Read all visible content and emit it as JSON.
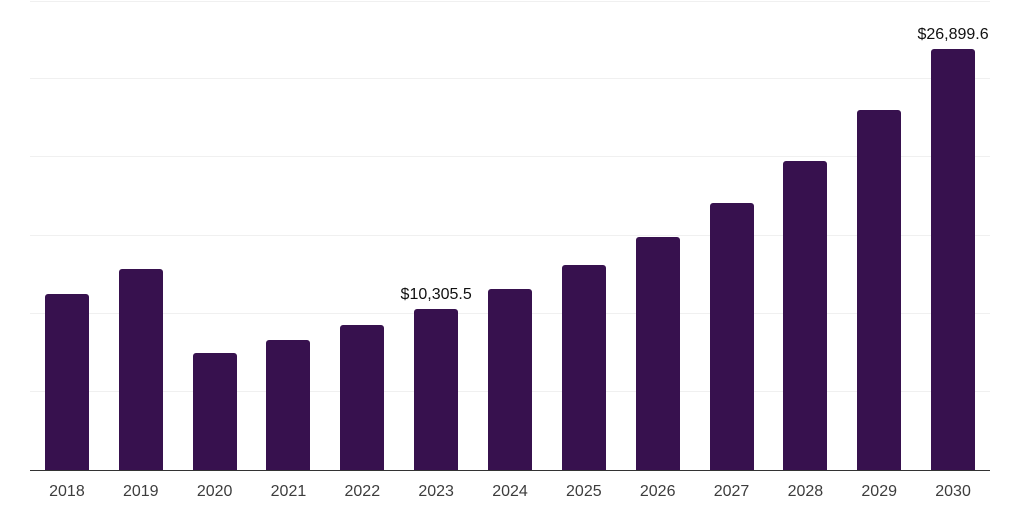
{
  "chart_data": {
    "type": "bar",
    "title": "",
    "xlabel": "",
    "ylabel": "",
    "categories": [
      "2018",
      "2019",
      "2020",
      "2021",
      "2022",
      "2023",
      "2024",
      "2025",
      "2026",
      "2027",
      "2028",
      "2029",
      "2030"
    ],
    "values": [
      11270,
      12870,
      7490,
      8320,
      9280,
      10305.5,
      11590,
      13120,
      14920,
      17090,
      19790,
      23040,
      26899.6
    ],
    "annotations": [
      {
        "index": 5,
        "category": "2023",
        "value": 10305.5,
        "text": "$10,305.5"
      },
      {
        "index": 12,
        "category": "2030",
        "value": 26899.6,
        "text": "$26,899.6"
      }
    ],
    "ylim": [
      0,
      30000
    ],
    "grid": {
      "axis": "y",
      "interval": 5000,
      "visible": true
    },
    "legend": "none",
    "y_tick_labels_visible": false
  },
  "colors": {
    "bar": "#37114E",
    "axis_line": "#333333",
    "gridline": "#f0f0f0",
    "tick_label": "#3d3d3d",
    "data_label": "#111111",
    "background": "#ffffff"
  }
}
